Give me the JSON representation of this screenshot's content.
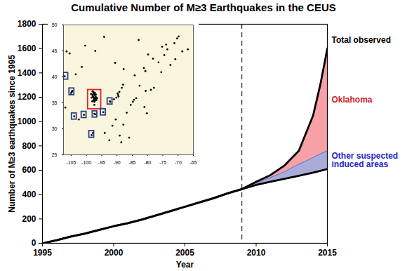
{
  "chart_data": [
    {
      "type": "area",
      "stacked": true,
      "title": "Cumulative Number of M≥3 Earthquakes in the CEUS",
      "x_label": "Year",
      "y_label": "Number of M≥3 earthquakes since 1995",
      "x": [
        1995,
        1996,
        1997,
        1998,
        1999,
        2000,
        2001,
        2002,
        2003,
        2004,
        2005,
        2006,
        2007,
        2008,
        2009,
        2010,
        2011,
        2012,
        2013,
        2014,
        2014.5,
        2015
      ],
      "series": [
        {
          "name": null,
          "type": "line",
          "color": "#000000",
          "values": [
            0,
            25,
            55,
            80,
            110,
            140,
            165,
            195,
            230,
            265,
            300,
            335,
            370,
            410,
            445,
            480,
            505,
            530,
            555,
            580,
            595,
            610
          ]
        },
        {
          "name": "Other suspected induced areas",
          "type": "area",
          "color": "#a9acd8",
          "values": [
            0,
            0,
            0,
            0,
            0,
            0,
            0,
            0,
            0,
            0,
            0,
            0,
            0,
            0,
            0,
            15,
            35,
            60,
            95,
            125,
            140,
            150
          ]
        },
        {
          "name": "Oklahoma",
          "type": "area",
          "color": "#f7a1a6",
          "values": [
            0,
            0,
            0,
            0,
            0,
            0,
            0,
            0,
            0,
            0,
            0,
            0,
            0,
            0,
            0,
            10,
            20,
            50,
            110,
            345,
            565,
            840
          ]
        }
      ],
      "total": {
        "label": "Total observed",
        "color": "#000000"
      },
      "reference_line": {
        "x": 2009,
        "line_style": "dashed"
      },
      "xlim": [
        1995,
        2015
      ],
      "xticks": [
        1995,
        2000,
        2005,
        2010,
        2015
      ],
      "ylim": [
        0,
        1800
      ],
      "yticks": [
        0,
        200,
        400,
        600,
        800,
        1000,
        1200,
        1400,
        1600,
        1800
      ],
      "grid": false
    },
    {
      "type": "scatter",
      "color": "#000000",
      "marker": "circle",
      "x": [
        -97.5,
        -97.3,
        -97.1,
        -96.9,
        -97.6,
        -97.8,
        -98.0,
        -97.9,
        -97.6,
        -97.3,
        -97.0,
        -96.8,
        -97.2,
        -97.4,
        -96.7,
        -98.3,
        -98.5,
        -97.7,
        -98.0,
        -97.2,
        -96.9,
        -97.4,
        -98.1,
        -96.5,
        -97.7,
        -104.8,
        -104.6,
        -105.0,
        -104.0,
        -102.5,
        -100.8,
        -97.1,
        -97.4,
        -98.3,
        -97.9,
        -94.5,
        -92.3,
        -92.2,
        -106.9,
        -107.1,
        -105.5,
        -101.5,
        -103.5,
        -106.5,
        -100.4,
        -89.6,
        -89.5,
        -89.8,
        -89.2,
        -90.2,
        -88.4,
        -88.0,
        -91.0,
        -84.4,
        -84.8,
        -83.7,
        -85.5,
        -86.8,
        -81.0,
        -80.2,
        -77.9,
        -78.9,
        -80.6,
        -82.6,
        -90.4,
        -91.5,
        -87.9,
        -80.7,
        -81.2,
        -84.2,
        -87.8,
        -90.6,
        -74.5,
        -73.5,
        -71.2,
        -70.3,
        -69.8,
        -75.5,
        -72.5,
        -70.9,
        -76.4,
        -78.2,
        -66.8,
        -68.6,
        -75.2,
        -73.9,
        -79.8,
        -82.9,
        -94.2,
        -97.1,
        -94.0,
        -89.1,
        -92.5,
        -88.6,
        -86.0
      ],
      "values": [
        35.8,
        35.9,
        35.6,
        35.7,
        36.0,
        36.2,
        36.4,
        36.6,
        36.8,
        36.5,
        36.2,
        36.0,
        35.4,
        35.2,
        35.5,
        36.0,
        36.7,
        37.1,
        37.2,
        36.9,
        36.6,
        34.6,
        35.3,
        35.9,
        35.5,
        37.1,
        37.3,
        36.9,
        32.4,
        31.8,
        32.7,
        32.8,
        32.9,
        28.8,
        29.2,
        33.2,
        35.3,
        35.2,
        34.1,
        40.1,
        44.5,
        41.9,
        40.5,
        44.9,
        46.0,
        36.5,
        36.2,
        36.8,
        37.1,
        36.0,
        37.9,
        38.5,
        35.7,
        35.6,
        35.2,
        35.9,
        34.6,
        33.1,
        34.2,
        33.0,
        37.9,
        37.5,
        37.3,
        38.3,
        31.8,
        30.6,
        30.8,
        41.1,
        41.7,
        40.3,
        41.5,
        42.7,
        44.2,
        45.3,
        46.5,
        47.4,
        47.8,
        40.9,
        42.3,
        43.4,
        42.8,
        43.5,
        45.3,
        44.9,
        45.8,
        46.2,
        44.3,
        47.1,
        47.7,
        45.0,
        29.2,
        28.7,
        27.8,
        27.4,
        28.3
      ],
      "regions": [
        {
          "x1": -99.5,
          "x2": -95.2,
          "y1": 33.8,
          "y2": 37.5,
          "color": "#e8202a"
        },
        {
          "x1": -107.5,
          "x2": -106.0,
          "y1": 39.5,
          "y2": 40.8,
          "color": "#2c3e8f"
        },
        {
          "x1": -105.6,
          "x2": -104.0,
          "y1": 36.5,
          "y2": 37.8,
          "color": "#2c3e8f"
        },
        {
          "x1": -104.8,
          "x2": -103.2,
          "y1": 31.8,
          "y2": 33.0,
          "color": "#2c3e8f"
        },
        {
          "x1": -101.6,
          "x2": -100.0,
          "y1": 32.1,
          "y2": 33.3,
          "color": "#2c3e8f"
        },
        {
          "x1": -98.0,
          "x2": -96.5,
          "y1": 32.2,
          "y2": 33.4,
          "color": "#2c3e8f"
        },
        {
          "x1": -99.1,
          "x2": -97.5,
          "y1": 28.3,
          "y2": 29.6,
          "color": "#2c3e8f"
        },
        {
          "x1": -95.3,
          "x2": -93.7,
          "y1": 32.6,
          "y2": 33.8,
          "color": "#2c3e8f"
        },
        {
          "x1": -93.1,
          "x2": -91.5,
          "y1": 34.7,
          "y2": 35.9,
          "color": "#2c3e8f"
        }
      ],
      "xlim": [
        -107.5,
        -65
      ],
      "xticks": [
        -105,
        -100,
        -95,
        -90,
        -85,
        -80,
        -75,
        -70,
        -65
      ],
      "ylim": [
        25,
        50
      ],
      "yticks": [
        25,
        30,
        35,
        40,
        45,
        50
      ]
    }
  ]
}
